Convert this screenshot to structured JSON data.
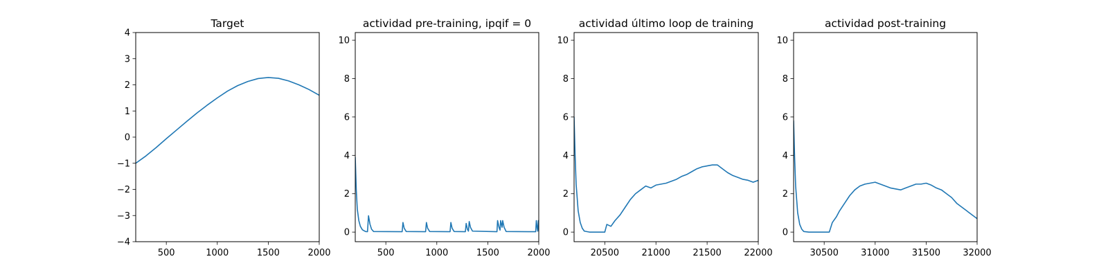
{
  "figure": {
    "background": "#ffffff",
    "series_color": "#1f77b4"
  },
  "chart_data": [
    {
      "type": "line",
      "title": "Target",
      "xlim": [
        200,
        2000
      ],
      "ylim": [
        -4,
        4
      ],
      "xticks": [
        500,
        1000,
        1500,
        2000
      ],
      "yticks": [
        -4,
        -3,
        -2,
        -1,
        0,
        1,
        2,
        3,
        4
      ],
      "grid": false,
      "series": [
        {
          "x": [
            200,
            300,
            400,
            500,
            600,
            700,
            800,
            900,
            1000,
            1100,
            1200,
            1300,
            1400,
            1500,
            1600,
            1700,
            1800,
            1900,
            2000
          ],
          "y": [
            -1.0,
            -0.72,
            -0.4,
            -0.06,
            0.27,
            0.6,
            0.92,
            1.22,
            1.5,
            1.76,
            1.97,
            2.13,
            2.24,
            2.28,
            2.25,
            2.15,
            2.0,
            1.82,
            1.6
          ]
        }
      ]
    },
    {
      "type": "line",
      "title": "actividad pre-training, ipqif = 0",
      "xlim": [
        200,
        2000
      ],
      "ylim": [
        -0.5,
        10.4
      ],
      "xticks": [
        500,
        1000,
        1500,
        2000
      ],
      "yticks": [
        0,
        2,
        4,
        6,
        8,
        10
      ],
      "grid": false,
      "series": [
        {
          "x": [
            200,
            210,
            220,
            235,
            250,
            270,
            300,
            320,
            330,
            345,
            360,
            380,
            660,
            668,
            680,
            700,
            890,
            898,
            910,
            930,
            1130,
            1138,
            1150,
            1170,
            1280,
            1288,
            1300,
            1310,
            1318,
            1330,
            1350,
            1590,
            1596,
            1610,
            1620,
            1626,
            1640,
            1646,
            1660,
            1680,
            1970,
            1976,
            1985,
            1990,
            1996,
            2000
          ],
          "y": [
            3.9,
            2.2,
            1.2,
            0.6,
            0.3,
            0.12,
            0.03,
            0.02,
            0.85,
            0.4,
            0.15,
            0.03,
            0.02,
            0.5,
            0.2,
            0.03,
            0.02,
            0.5,
            0.2,
            0.03,
            0.02,
            0.5,
            0.2,
            0.03,
            0.02,
            0.45,
            0.15,
            0.05,
            0.55,
            0.25,
            0.05,
            0.02,
            0.6,
            0.25,
            0.1,
            0.6,
            0.25,
            0.6,
            0.25,
            0.03,
            0.02,
            0.6,
            0.2,
            0.05,
            0.6,
            0.3
          ]
        }
      ]
    },
    {
      "type": "line",
      "title": "actividad último loop de training",
      "xlim": [
        20200,
        22000
      ],
      "ylim": [
        -0.5,
        10.4
      ],
      "xticks": [
        20500,
        21000,
        21500,
        22000
      ],
      "yticks": [
        0,
        2,
        4,
        6,
        8,
        10
      ],
      "grid": false,
      "series": [
        {
          "x": [
            20200,
            20210,
            20220,
            20240,
            20260,
            20280,
            20300,
            20350,
            20400,
            20450,
            20500,
            20520,
            20560,
            20600,
            20650,
            20700,
            20750,
            20800,
            20850,
            20900,
            20950,
            21000,
            21050,
            21100,
            21150,
            21200,
            21250,
            21300,
            21350,
            21400,
            21450,
            21500,
            21550,
            21600,
            21650,
            21700,
            21750,
            21800,
            21850,
            21900,
            21950,
            22000
          ],
          "y": [
            6.0,
            4.0,
            2.5,
            1.1,
            0.5,
            0.2,
            0.05,
            0.0,
            0.0,
            0.0,
            0.0,
            0.4,
            0.3,
            0.6,
            0.9,
            1.3,
            1.7,
            2.0,
            2.2,
            2.4,
            2.3,
            2.45,
            2.5,
            2.55,
            2.65,
            2.75,
            2.9,
            3.0,
            3.15,
            3.3,
            3.4,
            3.45,
            3.5,
            3.5,
            3.3,
            3.1,
            2.95,
            2.85,
            2.75,
            2.7,
            2.6,
            2.7
          ]
        }
      ]
    },
    {
      "type": "line",
      "title": "actividad post-training",
      "xlim": [
        30200,
        32000
      ],
      "ylim": [
        -0.5,
        10.4
      ],
      "xticks": [
        30500,
        31000,
        31500,
        32000
      ],
      "yticks": [
        0,
        2,
        4,
        6,
        8,
        10
      ],
      "grid": false,
      "series": [
        {
          "x": [
            30200,
            30210,
            30220,
            30240,
            30260,
            30280,
            30300,
            30350,
            30400,
            30450,
            30500,
            30550,
            30580,
            30620,
            30650,
            30700,
            30750,
            30800,
            30850,
            30900,
            30950,
            31000,
            31050,
            31100,
            31150,
            31200,
            31250,
            31300,
            31350,
            31400,
            31450,
            31500,
            31550,
            31600,
            31650,
            31700,
            31750,
            31800,
            31850,
            31900,
            31950,
            32000
          ],
          "y": [
            5.8,
            3.9,
            2.4,
            1.0,
            0.4,
            0.15,
            0.03,
            0.0,
            0.0,
            0.0,
            0.0,
            0.0,
            0.5,
            0.8,
            1.1,
            1.5,
            1.9,
            2.2,
            2.4,
            2.5,
            2.55,
            2.6,
            2.5,
            2.4,
            2.3,
            2.25,
            2.2,
            2.3,
            2.4,
            2.5,
            2.5,
            2.55,
            2.45,
            2.3,
            2.2,
            2.0,
            1.8,
            1.5,
            1.3,
            1.1,
            0.9,
            0.7
          ]
        }
      ]
    }
  ]
}
